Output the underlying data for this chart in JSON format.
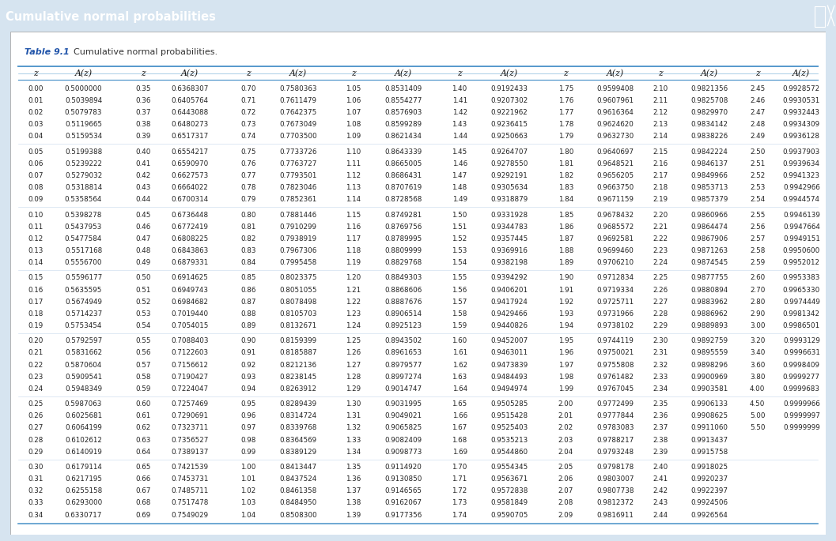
{
  "title": "Cumulative normal probabilities",
  "table_label": "Table 9.1",
  "table_caption": "Cumulative normal probabilities.",
  "header_bg": "#4472a8",
  "header_text_color": "#ffffff",
  "outer_bg": "#d6e4f0",
  "inner_bg": "#ffffff",
  "col_header_color": "#2255aa",
  "border_color_thick": "#5599cc",
  "border_color_thin": "#88bbdd",
  "sep_color": "#ccddee",
  "text_color": "#222222",
  "groups": [
    {
      "main": [
        [
          "0.00",
          "0.5000000",
          "0.35",
          "0.6368307",
          "0.70",
          "0.7580363",
          "1.05",
          "0.8531409",
          "1.40",
          "0.9192433",
          "1.75",
          "0.9599408"
        ],
        [
          "0.01",
          "0.5039894",
          "0.36",
          "0.6405764",
          "0.71",
          "0.7611479",
          "1.06",
          "0.8554277",
          "1.41",
          "0.9207302",
          "1.76",
          "0.9607961"
        ],
        [
          "0.02",
          "0.5079783",
          "0.37",
          "0.6443088",
          "0.72",
          "0.7642375",
          "1.07",
          "0.8576903",
          "1.42",
          "0.9221962",
          "1.77",
          "0.9616364"
        ],
        [
          "0.03",
          "0.5119665",
          "0.38",
          "0.6480273",
          "0.73",
          "0.7673049",
          "1.08",
          "0.8599289",
          "1.43",
          "0.9236415",
          "1.78",
          "0.9624620"
        ],
        [
          "0.04",
          "0.5159534",
          "0.39",
          "0.6517317",
          "0.74",
          "0.7703500",
          "1.09",
          "0.8621434",
          "1.44",
          "0.9250663",
          "1.79",
          "0.9632730"
        ]
      ],
      "right": [
        [
          "2.10",
          "0.9821356",
          "2.45",
          "0.9928572"
        ],
        [
          "2.11",
          "0.9825708",
          "2.46",
          "0.9930531"
        ],
        [
          "2.12",
          "0.9829970",
          "2.47",
          "0.9932443"
        ],
        [
          "2.13",
          "0.9834142",
          "2.48",
          "0.9934309"
        ],
        [
          "2.14",
          "0.9838226",
          "2.49",
          "0.9936128"
        ]
      ]
    },
    {
      "main": [
        [
          "0.05",
          "0.5199388",
          "0.40",
          "0.6554217",
          "0.75",
          "0.7733726",
          "1.10",
          "0.8643339",
          "1.45",
          "0.9264707",
          "1.80",
          "0.9640697"
        ],
        [
          "0.06",
          "0.5239222",
          "0.41",
          "0.6590970",
          "0.76",
          "0.7763727",
          "1.11",
          "0.8665005",
          "1.46",
          "0.9278550",
          "1.81",
          "0.9648521"
        ],
        [
          "0.07",
          "0.5279032",
          "0.42",
          "0.6627573",
          "0.77",
          "0.7793501",
          "1.12",
          "0.8686431",
          "1.47",
          "0.9292191",
          "1.82",
          "0.9656205"
        ],
        [
          "0.08",
          "0.5318814",
          "0.43",
          "0.6664022",
          "0.78",
          "0.7823046",
          "1.13",
          "0.8707619",
          "1.48",
          "0.9305634",
          "1.83",
          "0.9663750"
        ],
        [
          "0.09",
          "0.5358564",
          "0.44",
          "0.6700314",
          "0.79",
          "0.7852361",
          "1.14",
          "0.8728568",
          "1.49",
          "0.9318879",
          "1.84",
          "0.9671159"
        ]
      ],
      "right": [
        [
          "2.15",
          "0.9842224",
          "2.50",
          "0.9937903"
        ],
        [
          "2.16",
          "0.9846137",
          "2.51",
          "0.9939634"
        ],
        [
          "2.17",
          "0.9849966",
          "2.52",
          "0.9941323"
        ],
        [
          "2.18",
          "0.9853713",
          "2.53",
          "0.9942966"
        ],
        [
          "2.19",
          "0.9857379",
          "2.54",
          "0.9944574"
        ]
      ]
    },
    {
      "main": [
        [
          "0.10",
          "0.5398278",
          "0.45",
          "0.6736448",
          "0.80",
          "0.7881446",
          "1.15",
          "0.8749281",
          "1.50",
          "0.9331928",
          "1.85",
          "0.9678432"
        ],
        [
          "0.11",
          "0.5437953",
          "0.46",
          "0.6772419",
          "0.81",
          "0.7910299",
          "1.16",
          "0.8769756",
          "1.51",
          "0.9344783",
          "1.86",
          "0.9685572"
        ],
        [
          "0.12",
          "0.5477584",
          "0.47",
          "0.6808225",
          "0.82",
          "0.7938919",
          "1.17",
          "0.8789995",
          "1.52",
          "0.9357445",
          "1.87",
          "0.9692581"
        ],
        [
          "0.13",
          "0.5517168",
          "0.48",
          "0.6843863",
          "0.83",
          "0.7967306",
          "1.18",
          "0.8809999",
          "1.53",
          "0.9369916",
          "1.88",
          "0.9699460"
        ],
        [
          "0.14",
          "0.5556700",
          "0.49",
          "0.6879331",
          "0.84",
          "0.7995458",
          "1.19",
          "0.8829768",
          "1.54",
          "0.9382198",
          "1.89",
          "0.9706210"
        ]
      ],
      "right": [
        [
          "2.20",
          "0.9860966",
          "2.55",
          "0.9946139"
        ],
        [
          "2.21",
          "0.9864474",
          "2.56",
          "0.9947664"
        ],
        [
          "2.22",
          "0.9867906",
          "2.57",
          "0.9949151"
        ],
        [
          "2.23",
          "0.9871263",
          "2.58",
          "0.9950600"
        ],
        [
          "2.24",
          "0.9874545",
          "2.59",
          "0.9952012"
        ]
      ]
    },
    {
      "main": [
        [
          "0.15",
          "0.5596177",
          "0.50",
          "0.6914625",
          "0.85",
          "0.8023375",
          "1.20",
          "0.8849303",
          "1.55",
          "0.9394292",
          "1.90",
          "0.9712834"
        ],
        [
          "0.16",
          "0.5635595",
          "0.51",
          "0.6949743",
          "0.86",
          "0.8051055",
          "1.21",
          "0.8868606",
          "1.56",
          "0.9406201",
          "1.91",
          "0.9719334"
        ],
        [
          "0.17",
          "0.5674949",
          "0.52",
          "0.6984682",
          "0.87",
          "0.8078498",
          "1.22",
          "0.8887676",
          "1.57",
          "0.9417924",
          "1.92",
          "0.9725711"
        ],
        [
          "0.18",
          "0.5714237",
          "0.53",
          "0.7019440",
          "0.88",
          "0.8105703",
          "1.23",
          "0.8906514",
          "1.58",
          "0.9429466",
          "1.93",
          "0.9731966"
        ],
        [
          "0.19",
          "0.5753454",
          "0.54",
          "0.7054015",
          "0.89",
          "0.8132671",
          "1.24",
          "0.8925123",
          "1.59",
          "0.9440826",
          "1.94",
          "0.9738102"
        ]
      ],
      "right": [
        [
          "2.25",
          "0.9877755",
          "2.60",
          "0.9953383"
        ],
        [
          "2.26",
          "0.9880894",
          "2.70",
          "0.9965330"
        ],
        [
          "2.27",
          "0.9883962",
          "2.80",
          "0.9974449"
        ],
        [
          "2.28",
          "0.9886962",
          "2.90",
          "0.9981342"
        ],
        [
          "2.29",
          "0.9889893",
          "3.00",
          "0.9986501"
        ]
      ]
    },
    {
      "main": [
        [
          "0.20",
          "0.5792597",
          "0.55",
          "0.7088403",
          "0.90",
          "0.8159399",
          "1.25",
          "0.8943502",
          "1.60",
          "0.9452007",
          "1.95",
          "0.9744119"
        ],
        [
          "0.21",
          "0.5831662",
          "0.56",
          "0.7122603",
          "0.91",
          "0.8185887",
          "1.26",
          "0.8961653",
          "1.61",
          "0.9463011",
          "1.96",
          "0.9750021"
        ],
        [
          "0.22",
          "0.5870604",
          "0.57",
          "0.7156612",
          "0.92",
          "0.8212136",
          "1.27",
          "0.8979577",
          "1.62",
          "0.9473839",
          "1.97",
          "0.9755808"
        ],
        [
          "0.23",
          "0.5909541",
          "0.58",
          "0.7190427",
          "0.93",
          "0.8238145",
          "1.28",
          "0.8997274",
          "1.63",
          "0.9484493",
          "1.98",
          "0.9761482"
        ],
        [
          "0.24",
          "0.5948349",
          "0.59",
          "0.7224047",
          "0.94",
          "0.8263912",
          "1.29",
          "0.9014747",
          "1.64",
          "0.9494974",
          "1.99",
          "0.9767045"
        ]
      ],
      "right": [
        [
          "2.30",
          "0.9892759",
          "3.20",
          "0.9993129"
        ],
        [
          "2.31",
          "0.9895559",
          "3.40",
          "0.9996631"
        ],
        [
          "2.32",
          "0.9898296",
          "3.60",
          "0.9998409"
        ],
        [
          "2.33",
          "0.9900969",
          "3.80",
          "0.9999277"
        ],
        [
          "2.34",
          "0.9903581",
          "4.00",
          "0.9999683"
        ]
      ]
    },
    {
      "main": [
        [
          "0.25",
          "0.5987063",
          "0.60",
          "0.7257469",
          "0.95",
          "0.8289439",
          "1.30",
          "0.9031995",
          "1.65",
          "0.9505285",
          "2.00",
          "0.9772499"
        ],
        [
          "0.26",
          "0.6025681",
          "0.61",
          "0.7290691",
          "0.96",
          "0.8314724",
          "1.31",
          "0.9049021",
          "1.66",
          "0.9515428",
          "2.01",
          "0.9777844"
        ],
        [
          "0.27",
          "0.6064199",
          "0.62",
          "0.7323711",
          "0.97",
          "0.8339768",
          "1.32",
          "0.9065825",
          "1.67",
          "0.9525403",
          "2.02",
          "0.9783083"
        ],
        [
          "0.28",
          "0.6102612",
          "0.63",
          "0.7356527",
          "0.98",
          "0.8364569",
          "1.33",
          "0.9082409",
          "1.68",
          "0.9535213",
          "2.03",
          "0.9788217"
        ],
        [
          "0.29",
          "0.6140919",
          "0.64",
          "0.7389137",
          "0.99",
          "0.8389129",
          "1.34",
          "0.9098773",
          "1.69",
          "0.9544860",
          "2.04",
          "0.9793248"
        ]
      ],
      "right": [
        [
          "2.35",
          "0.9906133",
          "4.50",
          "0.9999966"
        ],
        [
          "2.36",
          "0.9908625",
          "5.00",
          "0.9999997"
        ],
        [
          "2.37",
          "0.9911060",
          "5.50",
          "0.9999999"
        ],
        [
          "2.38",
          "0.9913437",
          "",
          ""
        ],
        [
          "2.39",
          "0.9915758",
          "",
          ""
        ]
      ]
    },
    {
      "main": [
        [
          "0.30",
          "0.6179114",
          "0.65",
          "0.7421539",
          "1.00",
          "0.8413447",
          "1.35",
          "0.9114920",
          "1.70",
          "0.9554345",
          "2.05",
          "0.9798178"
        ],
        [
          "0.31",
          "0.6217195",
          "0.66",
          "0.7453731",
          "1.01",
          "0.8437524",
          "1.36",
          "0.9130850",
          "1.71",
          "0.9563671",
          "2.06",
          "0.9803007"
        ],
        [
          "0.32",
          "0.6255158",
          "0.67",
          "0.7485711",
          "1.02",
          "0.8461358",
          "1.37",
          "0.9146565",
          "1.72",
          "0.9572838",
          "2.07",
          "0.9807738"
        ],
        [
          "0.33",
          "0.6293000",
          "0.68",
          "0.7517478",
          "1.03",
          "0.8484950",
          "1.38",
          "0.9162067",
          "1.73",
          "0.9581849",
          "2.08",
          "0.9812372"
        ],
        [
          "0.34",
          "0.6330717",
          "0.69",
          "0.7549029",
          "1.04",
          "0.8508300",
          "1.39",
          "0.9177356",
          "1.74",
          "0.9590705",
          "2.09",
          "0.9816911"
        ]
      ],
      "right": [
        [
          "2.40",
          "0.9918025",
          "",
          ""
        ],
        [
          "2.41",
          "0.9920237",
          "",
          ""
        ],
        [
          "2.42",
          "0.9922397",
          "",
          ""
        ],
        [
          "2.43",
          "0.9924506",
          "",
          ""
        ],
        [
          "2.44",
          "0.9926564",
          "",
          ""
        ]
      ]
    }
  ]
}
